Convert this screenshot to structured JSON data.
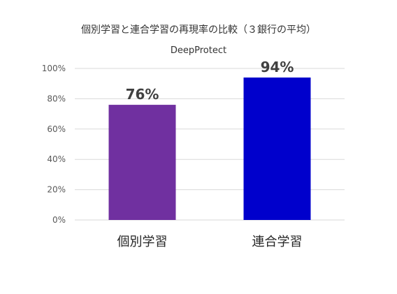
{
  "chart_data": {
    "type": "bar",
    "title": "個別学習と連合学習の再現率の比較（３銀行の平均）",
    "subtitle": "DeepProtect",
    "categories": [
      "個別学習",
      "連合学習"
    ],
    "values": [
      76,
      94
    ],
    "data_labels": [
      "76%",
      "94%"
    ],
    "bar_colors": [
      "#7030A0",
      "#0000CC"
    ],
    "yticks": [
      0,
      20,
      40,
      60,
      80,
      100
    ],
    "ytick_labels": [
      "0%",
      "20%",
      "40%",
      "60%",
      "80%",
      "100%"
    ],
    "ylim": [
      0,
      100
    ],
    "grid": true,
    "legend": "none"
  }
}
